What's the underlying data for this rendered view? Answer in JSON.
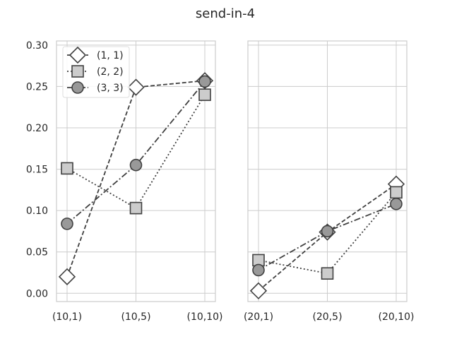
{
  "chart_data": {
    "type": "line",
    "title": "send-in-4",
    "ylim": [
      -0.01,
      0.305
    ],
    "yticks": [
      "0.00",
      "0.05",
      "0.10",
      "0.15",
      "0.20",
      "0.25",
      "0.30"
    ],
    "grid": true,
    "legend_position": "top-left",
    "panels": [
      {
        "categories": [
          "(10,1)",
          "(10,5)",
          "(10,10)"
        ],
        "series": [
          {
            "name": "(1, 1)",
            "values": [
              0.02,
              0.249,
              0.257
            ]
          },
          {
            "name": "(2, 2)",
            "values": [
              0.151,
              0.103,
              0.24
            ]
          },
          {
            "name": "(3, 3)",
            "values": [
              0.084,
              0.155,
              0.256
            ]
          }
        ]
      },
      {
        "categories": [
          "(20,1)",
          "(20,5)",
          "(20,10)"
        ],
        "series": [
          {
            "name": "(1, 1)",
            "values": [
              0.003,
              0.074,
              0.132
            ]
          },
          {
            "name": "(2, 2)",
            "values": [
              0.04,
              0.024,
              0.122
            ]
          },
          {
            "name": "(3, 3)",
            "values": [
              0.028,
              0.075,
              0.108
            ]
          }
        ]
      }
    ],
    "series_styles": [
      {
        "marker": "diamond",
        "dash": "dashed",
        "fill": "#ffffff",
        "stroke": "#404040"
      },
      {
        "marker": "square",
        "dash": "dotted",
        "fill": "#cccccc",
        "stroke": "#404040"
      },
      {
        "marker": "circle",
        "dash": "dashdot",
        "fill": "#999999",
        "stroke": "#404040"
      }
    ]
  }
}
